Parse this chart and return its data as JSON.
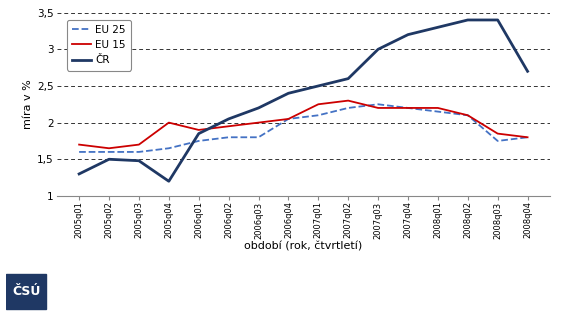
{
  "x_labels": [
    "2005\nq01",
    "2005\nq02",
    "2005\nq03",
    "2005\nq04",
    "2006\nq01",
    "2006\nq02",
    "2006\nq03",
    "2006\nq04",
    "2007\nq01",
    "2007\nq02",
    "2007\nq03",
    "2007\nq04",
    "2008\nq01",
    "2008\nq02",
    "2008\nq03",
    "2008\nq04"
  ],
  "x_labels_rot": [
    "2005q01",
    "2005q02",
    "2005q03",
    "2005q04",
    "2006q01",
    "2006q02",
    "2006q03",
    "2006q04",
    "2007q01",
    "2007q02",
    "2007q03",
    "2007q04",
    "2008q01",
    "2008q02",
    "2008q03",
    "2008q04"
  ],
  "eu25": [
    1.6,
    1.6,
    1.6,
    1.65,
    1.75,
    1.8,
    1.8,
    2.05,
    2.1,
    2.2,
    2.25,
    2.2,
    2.15,
    2.1,
    1.75,
    1.8
  ],
  "eu15": [
    1.7,
    1.65,
    1.7,
    2.0,
    1.9,
    1.95,
    2.0,
    2.05,
    2.25,
    2.3,
    2.2,
    2.2,
    2.2,
    2.1,
    1.85,
    1.8
  ],
  "cr": [
    1.3,
    1.5,
    1.48,
    1.2,
    1.85,
    2.05,
    2.2,
    2.4,
    2.5,
    2.6,
    3.0,
    3.2,
    3.3,
    3.4,
    3.4,
    2.7
  ],
  "eu25_color": "#4472C4",
  "eu15_color": "#CC0000",
  "cr_color": "#1F3864",
  "bg_color": "#FFFFFF",
  "grid_color": "#000000",
  "ylim": [
    1.0,
    3.5
  ],
  "yticks": [
    1.0,
    1.5,
    2.0,
    2.5,
    3.0,
    3.5
  ],
  "ylabel": "míra v %",
  "xlabel": "období (rok, čtvrtletí)",
  "legend_eu25": "EU 25",
  "legend_eu15": "EU 15",
  "legend_cr": "ČR"
}
